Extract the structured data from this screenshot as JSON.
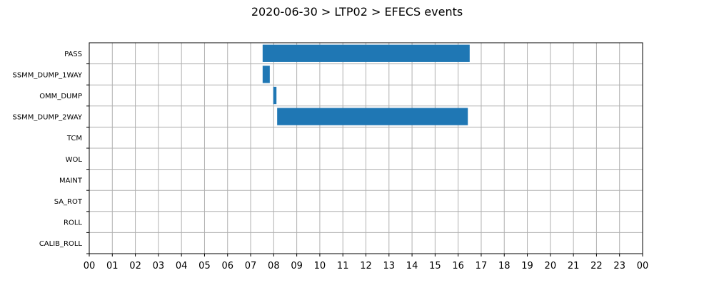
{
  "chart_data": {
    "type": "bar",
    "orientation": "horizontal-gantt",
    "title": "2020-06-30 > LTP02 > EFECS events",
    "categories": [
      "PASS",
      "SSMM_DUMP_1WAY",
      "OMM_DUMP",
      "SSMM_DUMP_2WAY",
      "TCM",
      "WOL",
      "MAINT",
      "SA_ROT",
      "ROLL",
      "CALIB_ROLL"
    ],
    "x_tick_labels": [
      "00",
      "01",
      "02",
      "03",
      "04",
      "05",
      "06",
      "07",
      "08",
      "09",
      "10",
      "11",
      "12",
      "13",
      "14",
      "15",
      "16",
      "17",
      "18",
      "19",
      "20",
      "21",
      "22",
      "23",
      "00"
    ],
    "xlim": [
      0,
      24
    ],
    "grid": true,
    "bar_color": "#1f77b4",
    "events": [
      {
        "category": "PASS",
        "start": 7.52,
        "end": 16.5
      },
      {
        "category": "SSMM_DUMP_1WAY",
        "start": 7.52,
        "end": 7.83
      },
      {
        "category": "OMM_DUMP",
        "start": 7.98,
        "end": 8.12
      },
      {
        "category": "SSMM_DUMP_2WAY",
        "start": 8.15,
        "end": 16.42
      }
    ]
  }
}
